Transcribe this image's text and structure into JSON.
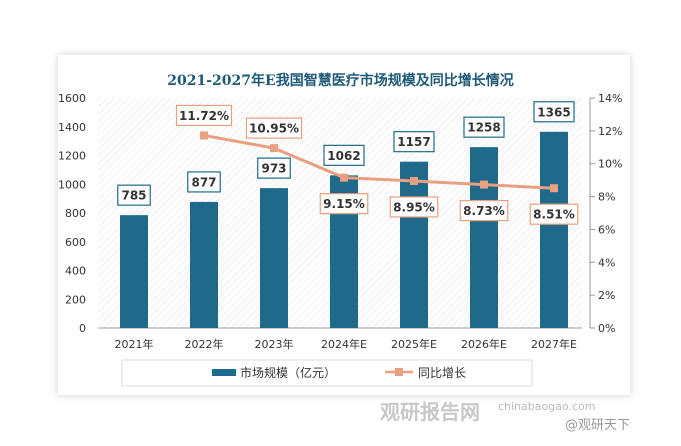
{
  "chart_data": {
    "type": "bar",
    "title": "2021-2027年E我国智慧医疗市场规模及同比增长情况",
    "categories": [
      "2021年",
      "2022年",
      "2023年",
      "2024年E",
      "2025年E",
      "2026年E",
      "2027年E"
    ],
    "series": [
      {
        "name": "市场规模（亿元）",
        "type": "bar",
        "axis": "left",
        "values": [
          785,
          877,
          973,
          1062,
          1157,
          1258,
          1365
        ],
        "color": "#1f6a8a"
      },
      {
        "name": "同比增长",
        "type": "line",
        "axis": "right",
        "values": [
          null,
          11.72,
          10.95,
          9.15,
          8.95,
          8.73,
          8.51
        ],
        "labels": [
          "",
          "11.72%",
          "10.95%",
          "9.15%",
          "8.95%",
          "8.73%",
          "8.51%"
        ],
        "color": "#e8a080"
      }
    ],
    "ylim": [
      0,
      1600
    ],
    "yticks": [
      "0",
      "200",
      "400",
      "600",
      "800",
      "1000",
      "1200",
      "1400",
      "1600"
    ],
    "y2lim": [
      0,
      14
    ],
    "y2ticks": [
      "0%",
      "2%",
      "4%",
      "6%",
      "8%",
      "10%",
      "12%",
      "14%"
    ],
    "legend": "bottom"
  },
  "watermark": {
    "brand": "观研报告网",
    "url": "chinabaogao.com",
    "credit": "@观研天下"
  }
}
